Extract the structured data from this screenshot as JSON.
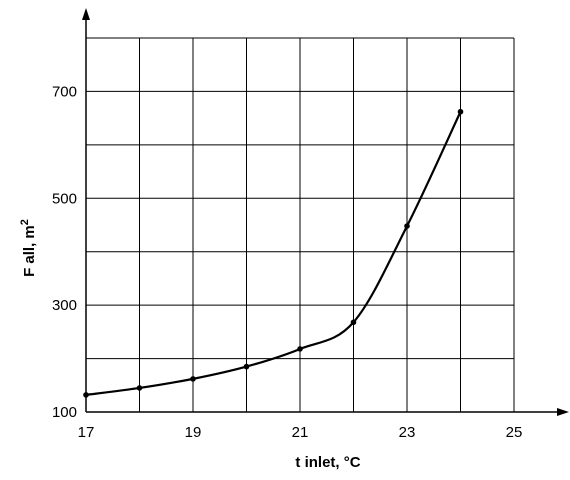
{
  "chart_data": {
    "type": "line",
    "xlabel": "t inlet, °C",
    "ylabel": {
      "main": "F all, m",
      "superscript": "2"
    },
    "xlim": [
      17,
      25
    ],
    "ylim": [
      100,
      800
    ],
    "grid": true,
    "x_ticks": [
      17,
      18,
      19,
      20,
      21,
      22,
      23,
      24,
      25
    ],
    "x_tick_labels": [
      "17",
      "19",
      "21",
      "23",
      "25"
    ],
    "x_tick_label_values": [
      17,
      19,
      21,
      23,
      25
    ],
    "y_ticks": [
      100,
      200,
      300,
      400,
      500,
      600,
      700,
      800
    ],
    "y_tick_labels": [
      "100",
      "300",
      "500",
      "700"
    ],
    "y_tick_label_values": [
      100,
      300,
      500,
      700
    ],
    "series": [
      {
        "x": [
          17,
          18,
          19,
          20,
          21,
          22,
          23,
          24
        ],
        "y": [
          132,
          145,
          162,
          185,
          218,
          268,
          448,
          662
        ]
      }
    ],
    "line_color": "#000000",
    "grid_color": "#000000"
  }
}
